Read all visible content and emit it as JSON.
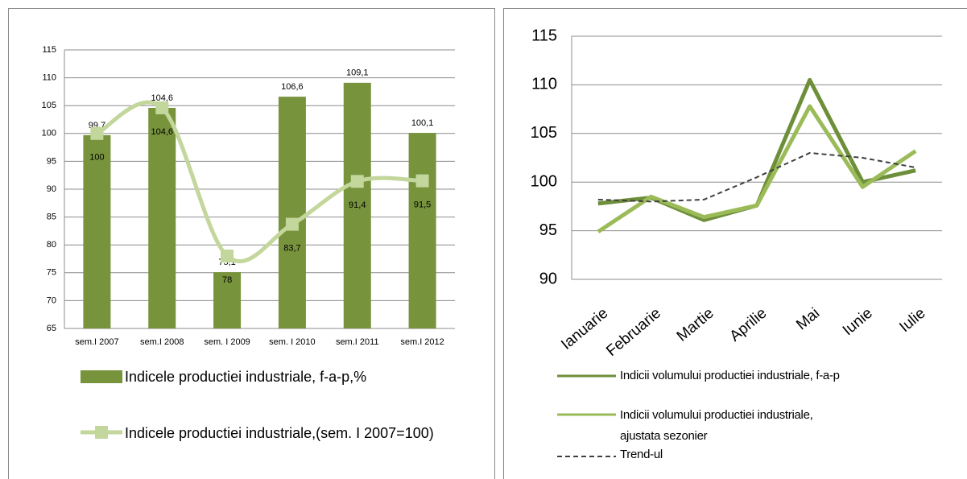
{
  "chart_data": [
    {
      "type": "combo",
      "categories": [
        "sem.I 2007",
        "sem.I 2008",
        "sem. I 2009",
        "sem. I 2010",
        "sem.I 2011",
        "sem.I 2012"
      ],
      "ylim": [
        65,
        115
      ],
      "yticks": [
        65,
        70,
        75,
        80,
        85,
        90,
        95,
        100,
        105,
        110,
        115
      ],
      "grid": true,
      "series": [
        {
          "name": "Indicele productiei industriale, f-a-p,%",
          "type": "bar",
          "color": "#77933c",
          "values": [
            99.7,
            104.6,
            75.1,
            106.6,
            109.1,
            100.1
          ],
          "value_labels": [
            "99,7",
            "104,6",
            "75,1",
            "106,6",
            "109,1",
            "100,1"
          ]
        },
        {
          "name": "Indicele productiei industriale,(sem. I 2007=100)",
          "type": "line",
          "color": "#c3d69b",
          "values": [
            100,
            104.6,
            78,
            83.7,
            91.4,
            91.5
          ],
          "value_labels": [
            "100",
            "104,6",
            "78",
            "83,7",
            "91,4",
            "91,5"
          ]
        }
      ]
    },
    {
      "type": "line",
      "categories": [
        "Ianuarie",
        "Februarie",
        "Martie",
        "Aprilie",
        "Mai",
        "Iunie",
        "Iulie"
      ],
      "ylim": [
        90,
        115
      ],
      "yticks": [
        90,
        95,
        100,
        105,
        110,
        115
      ],
      "grid": true,
      "series": [
        {
          "name": "Indicii volumului productiei industriale, f-a-p",
          "color": "#6e8f3a",
          "dash": false,
          "values": [
            97.8,
            98.4,
            96.1,
            97.6,
            110.5,
            100.0,
            101.2
          ]
        },
        {
          "name": "Indicii volumului productiei industriale, ajustata sezonier",
          "color": "#9bbb59",
          "dash": false,
          "values": [
            94.9,
            98.5,
            96.4,
            97.6,
            107.8,
            99.5,
            103.2
          ]
        },
        {
          "name": "Trend-ul",
          "color": "#404040",
          "dash": true,
          "values": [
            98.2,
            98.0,
            98.2,
            100.5,
            103.0,
            102.5,
            101.5
          ]
        }
      ]
    }
  ]
}
